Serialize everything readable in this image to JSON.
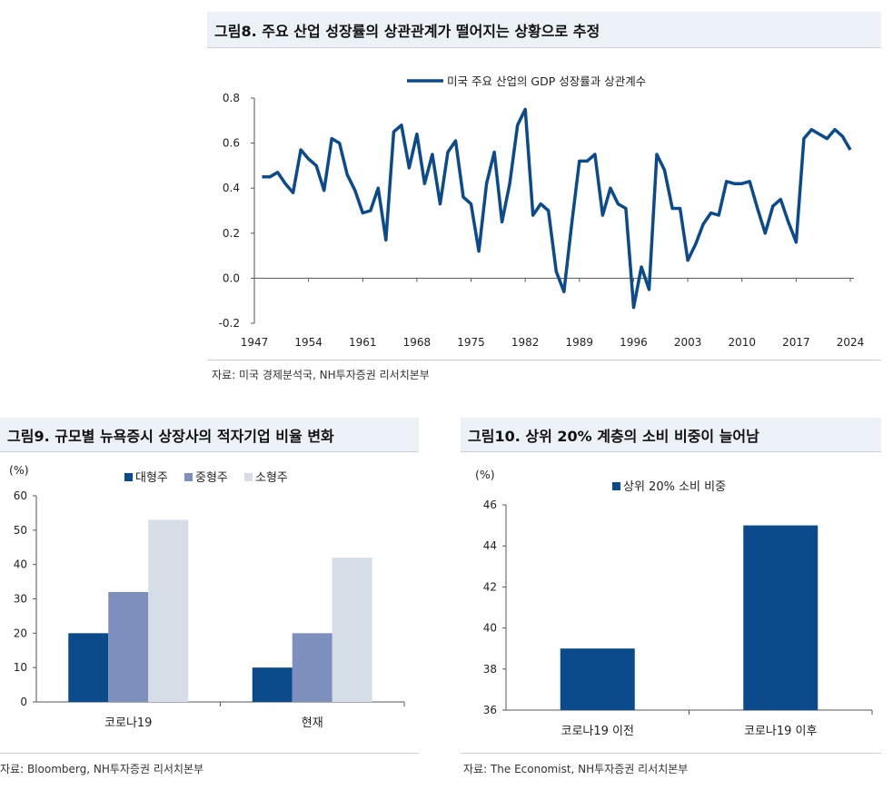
{
  "fig8": {
    "title": "그림8. 주요 산업 성장률의 상관관계가 떨어지는 상황으로 추정",
    "source": "자료: 미국 경제분석국, NH투자증권 리서치본부",
    "color": "#0b4a8b",
    "chart_data": {
      "type": "line",
      "series": [
        {
          "name": "미국 주요 산업의 GDP 성장률과 상관계수"
        }
      ],
      "x": [
        1948,
        1949,
        1950,
        1951,
        1952,
        1953,
        1954,
        1955,
        1956,
        1957,
        1958,
        1959,
        1960,
        1961,
        1962,
        1963,
        1964,
        1965,
        1966,
        1967,
        1968,
        1969,
        1970,
        1971,
        1972,
        1973,
        1974,
        1975,
        1976,
        1977,
        1978,
        1979,
        1980,
        1981,
        1982,
        1983,
        1984,
        1985,
        1986,
        1987,
        1988,
        1989,
        1990,
        1991,
        1992,
        1993,
        1994,
        1995,
        1996,
        1997,
        1998,
        1999,
        2000,
        2001,
        2002,
        2003,
        2004,
        2005,
        2006,
        2007,
        2008,
        2009,
        2010,
        2011,
        2012,
        2013,
        2014,
        2015,
        2016,
        2017,
        2018,
        2019,
        2020,
        2021,
        2022,
        2023,
        2024
      ],
      "y": [
        0.45,
        0.45,
        0.47,
        0.42,
        0.38,
        0.57,
        0.53,
        0.5,
        0.39,
        0.62,
        0.6,
        0.46,
        0.39,
        0.29,
        0.3,
        0.4,
        0.17,
        0.65,
        0.68,
        0.49,
        0.64,
        0.42,
        0.55,
        0.33,
        0.56,
        0.61,
        0.36,
        0.33,
        0.12,
        0.42,
        0.56,
        0.25,
        0.42,
        0.68,
        0.75,
        0.28,
        0.33,
        0.3,
        0.03,
        -0.06,
        0.24,
        0.52,
        0.52,
        0.55,
        0.28,
        0.4,
        0.33,
        0.31,
        -0.13,
        0.05,
        -0.05,
        0.55,
        0.48,
        0.31,
        0.31,
        0.08,
        0.15,
        0.24,
        0.29,
        0.28,
        0.43,
        0.42,
        0.42,
        0.43,
        0.31,
        0.2,
        0.32,
        0.35,
        0.25,
        0.16,
        0.62,
        0.66,
        0.64,
        0.62,
        0.66,
        0.63,
        0.57
      ],
      "xticks": [
        "1947",
        "1954",
        "1961",
        "1968",
        "1975",
        "1982",
        "1989",
        "1996",
        "2003",
        "2010",
        "2017",
        "2024"
      ],
      "yticks": [
        "0.8",
        "0.6",
        "0.4",
        "0.2",
        "0.0",
        "-0.2"
      ],
      "ylim": [
        -0.2,
        0.8
      ],
      "xlim": [
        1947,
        2024
      ],
      "legend_position": "top"
    }
  },
  "fig9": {
    "title": "그림9. 규모별 뉴욕증시 상장사의 적자기업 비율 변화",
    "source": "자료: Bloomberg, NH투자증권 리서치본부",
    "unit": "(%)",
    "chart_data": {
      "type": "bar",
      "categories": [
        "코로나19",
        "현재"
      ],
      "series": [
        {
          "name": "대형주",
          "values": [
            20,
            10
          ],
          "color": "#0b4a8b"
        },
        {
          "name": "중형주",
          "values": [
            32,
            20
          ],
          "color": "#7d8fbd"
        },
        {
          "name": "소형주",
          "values": [
            53,
            42
          ],
          "color": "#d5dde6"
        }
      ],
      "yticks": [
        "60",
        "50",
        "40",
        "30",
        "20",
        "10",
        "0"
      ],
      "ylim": [
        0,
        60
      ],
      "legend_position": "top"
    }
  },
  "fig10": {
    "title": "그림10. 상위 20% 계층의 소비 비중이 늘어남",
    "source": "자료: The Economist, NH투자증권 리서치본부",
    "unit": "(%)",
    "chart_data": {
      "type": "bar",
      "categories": [
        "코로나19 이전",
        "코로나19 이후"
      ],
      "series": [
        {
          "name": "상위 20% 소비 비중",
          "values": [
            39,
            45
          ],
          "color": "#0b4a8b"
        }
      ],
      "yticks": [
        "46",
        "44",
        "42",
        "40",
        "38",
        "36"
      ],
      "ylim": [
        36,
        46
      ],
      "legend_position": "top"
    }
  }
}
